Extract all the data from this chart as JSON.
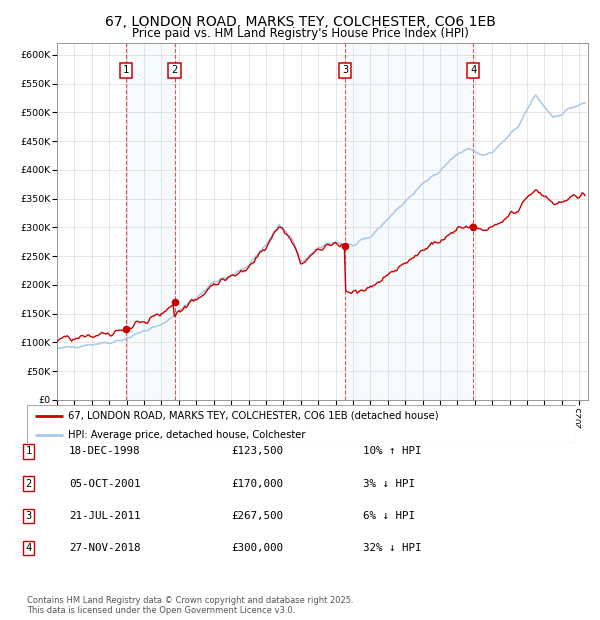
{
  "title": "67, LONDON ROAD, MARKS TEY, COLCHESTER, CO6 1EB",
  "subtitle": "Price paid vs. HM Land Registry's House Price Index (HPI)",
  "title_fontsize": 10,
  "subtitle_fontsize": 8.5,
  "background_color": "#ffffff",
  "plot_bg_color": "#ffffff",
  "grid_color": "#cccccc",
  "hpi_line_color": "#a8c8e8",
  "price_line_color": "#cc0000",
  "sale_marker_color": "#cc0000",
  "sale_times": [
    1998.958,
    2001.75,
    2011.542,
    2018.917
  ],
  "sale_prices": [
    123500,
    170000,
    267500,
    300000
  ],
  "sale_labels": [
    "1",
    "2",
    "3",
    "4"
  ],
  "sale_pcts": [
    "10% ↑ HPI",
    "3% ↓ HPI",
    "6% ↓ HPI",
    "32% ↓ HPI"
  ],
  "sale_date_strs": [
    "18-DEC-1998",
    "05-OCT-2001",
    "21-JUL-2011",
    "27-NOV-2018"
  ],
  "sale_price_strs": [
    "£123,500",
    "£170,000",
    "£267,500",
    "£300,000"
  ],
  "yticks": [
    0,
    50000,
    100000,
    150000,
    200000,
    250000,
    300000,
    350000,
    400000,
    450000,
    500000,
    550000,
    600000
  ],
  "ytick_labels": [
    "£0",
    "£50K",
    "£100K",
    "£150K",
    "£200K",
    "£250K",
    "£300K",
    "£350K",
    "£400K",
    "£450K",
    "£500K",
    "£550K",
    "£600K"
  ],
  "xlim_start": 1995.0,
  "xlim_end": 2025.5,
  "ylim_min": 0,
  "ylim_max": 620000,
  "legend_line1": "67, LONDON ROAD, MARKS TEY, COLCHESTER, CO6 1EB (detached house)",
  "legend_line2": "HPI: Average price, detached house, Colchester",
  "footnote": "Contains HM Land Registry data © Crown copyright and database right 2025.\nThis data is licensed under the Open Government Licence v3.0.",
  "hpi_key_points": {
    "1995.0": 88000,
    "1996.0": 93000,
    "1997.0": 97000,
    "1998.0": 100000,
    "1999.0": 107000,
    "2000.0": 120000,
    "2001.0": 130000,
    "2002.0": 155000,
    "2003.0": 178000,
    "2004.0": 205000,
    "2005.0": 215000,
    "2006.0": 235000,
    "2007.0": 270000,
    "2007.75": 305000,
    "2008.5": 280000,
    "2009.0": 240000,
    "2009.5": 250000,
    "2010.0": 263000,
    "2010.5": 272000,
    "2011.0": 275000,
    "2012.0": 268000,
    "2013.0": 283000,
    "2014.0": 315000,
    "2015.0": 345000,
    "2016.0": 375000,
    "2017.0": 400000,
    "2018.0": 428000,
    "2018.75": 437000,
    "2019.0": 432000,
    "2019.5": 425000,
    "2020.0": 430000,
    "2020.5": 445000,
    "2021.0": 460000,
    "2021.5": 475000,
    "2022.0": 505000,
    "2022.5": 530000,
    "2023.0": 510000,
    "2023.5": 492000,
    "2024.0": 498000,
    "2024.5": 508000,
    "2025.3": 515000
  }
}
